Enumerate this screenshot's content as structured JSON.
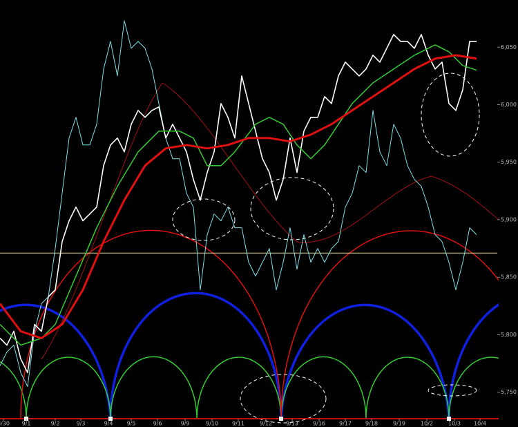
{
  "chart_data": {
    "type": "line",
    "xlim": [
      0,
      72
    ],
    "ylim": [
      5727,
      6091
    ],
    "yticks": [
      {
        "value": 6050,
        "label": "6,050"
      },
      {
        "value": 6000,
        "label": "6,000"
      },
      {
        "value": 5950,
        "label": "5,950"
      },
      {
        "value": 5900,
        "label": "5,900"
      },
      {
        "value": 5850,
        "label": "5,850"
      },
      {
        "value": 5800,
        "label": "5,800"
      },
      {
        "value": 5750,
        "label": "5,750"
      }
    ],
    "xticks": [
      {
        "value": 0.5,
        "label": "8/30"
      },
      {
        "value": 3.8,
        "label": "9/1"
      },
      {
        "value": 8,
        "label": "9/2"
      },
      {
        "value": 11.7,
        "label": "9/3"
      },
      {
        "value": 15.7,
        "label": "9/4"
      },
      {
        "value": 19,
        "label": "9/5"
      },
      {
        "value": 22.8,
        "label": "9/6"
      },
      {
        "value": 26.8,
        "label": "9/9"
      },
      {
        "value": 30.7,
        "label": "9/10"
      },
      {
        "value": 34.5,
        "label": "9/11"
      },
      {
        "value": 38.5,
        "label": "9/12"
      },
      {
        "value": 42.3,
        "label": "9/13"
      },
      {
        "value": 46.2,
        "label": "9/16"
      },
      {
        "value": 50,
        "label": "9/17"
      },
      {
        "value": 53.8,
        "label": "9/18"
      },
      {
        "value": 57.8,
        "label": "9/19"
      },
      {
        "value": 61.8,
        "label": "10/2"
      },
      {
        "value": 65.8,
        "label": "10/3"
      },
      {
        "value": 69.5,
        "label": "10/4"
      }
    ],
    "hline": {
      "value": 5871,
      "color": "#e8e08a"
    },
    "series": [
      {
        "color": "#7fe0e8",
        "width": 1,
        "x": [
          0,
          1,
          2,
          3,
          4,
          5,
          6,
          7,
          8,
          9,
          10,
          11,
          12,
          13,
          14,
          15,
          16,
          17,
          18,
          19,
          20,
          21,
          22,
          23,
          24,
          25,
          26,
          27,
          28,
          29,
          30,
          31,
          32,
          33,
          34,
          35,
          36,
          37,
          38,
          39,
          40,
          41,
          42,
          43,
          44,
          45,
          46,
          47,
          48,
          49,
          50,
          51,
          52,
          53,
          54,
          55,
          56,
          57,
          58,
          59,
          60,
          61,
          62,
          63,
          64,
          65,
          66,
          67,
          68,
          69
        ],
        "values": [
          5773,
          5785,
          5791,
          5767,
          5755,
          5803,
          5827,
          5833,
          5875,
          5923,
          5971,
          5989,
          5965,
          5965,
          5983,
          6031,
          6055,
          6025,
          6073,
          6049,
          6055,
          6049,
          6031,
          6001,
          5971,
          5953,
          5953,
          5923,
          5911,
          5839,
          5887,
          5905,
          5899,
          5911,
          5893,
          5893,
          5863,
          5851,
          5863,
          5875,
          5839,
          5863,
          5893,
          5857,
          5887,
          5863,
          5875,
          5863,
          5875,
          5881,
          5911,
          5923,
          5947,
          5941,
          5995,
          5959,
          5947,
          5983,
          5971,
          5947,
          5935,
          5929,
          5911,
          5887,
          5881,
          5863,
          5839,
          5863,
          5893,
          5887
        ]
      },
      {
        "color": "#ffffff",
        "width": 1.6,
        "x": [
          0,
          1,
          2,
          3,
          4,
          5,
          6,
          7,
          8,
          9,
          10,
          11,
          12,
          13,
          14,
          15,
          16,
          17,
          18,
          19,
          20,
          21,
          22,
          23,
          24,
          25,
          26,
          27,
          28,
          29,
          30,
          31,
          32,
          33,
          34,
          35,
          36,
          37,
          38,
          39,
          40,
          41,
          42,
          43,
          44,
          45,
          46,
          47,
          48,
          49,
          50,
          51,
          52,
          53,
          54,
          55,
          56,
          57,
          58,
          59,
          60,
          61,
          62,
          63,
          64,
          65,
          66,
          67,
          68,
          69
        ],
        "values": [
          5797,
          5791,
          5803,
          5779,
          5767,
          5809,
          5803,
          5833,
          5839,
          5881,
          5899,
          5911,
          5899,
          5905,
          5911,
          5947,
          5965,
          5971,
          5959,
          5983,
          5995,
          5989,
          5995,
          5998,
          5971,
          5983,
          5971,
          5959,
          5935,
          5917,
          5941,
          5959,
          6001,
          5989,
          5971,
          6025,
          6001,
          5977,
          5953,
          5941,
          5917,
          5935,
          5971,
          5941,
          5977,
          5989,
          5989,
          6007,
          6001,
          6025,
          6037,
          6031,
          6025,
          6031,
          6043,
          6037,
          6049,
          6061,
          6055,
          6055,
          6049,
          6061,
          6043,
          6031,
          6037,
          6001,
          5995,
          6013,
          6055,
          6055
        ]
      },
      {
        "color": "#33cc33",
        "width": 1.5,
        "x": [
          0,
          3,
          6,
          8,
          11,
          14,
          17,
          20,
          23,
          26,
          28,
          30,
          32,
          34,
          37,
          39,
          41,
          43,
          45,
          47,
          49,
          51,
          54,
          57,
          60,
          63,
          65,
          67,
          69
        ],
        "values": [
          5809,
          5791,
          5797,
          5809,
          5851,
          5893,
          5929,
          5959,
          5977,
          5977,
          5971,
          5947,
          5947,
          5959,
          5983,
          5989,
          5983,
          5965,
          5953,
          5965,
          5983,
          6001,
          6019,
          6031,
          6043,
          6052,
          6046,
          6034,
          6030
        ]
      },
      {
        "color": "#e01010",
        "width": 3,
        "x": [
          0,
          3,
          6,
          9,
          12,
          15,
          18,
          21,
          24,
          27,
          30,
          33,
          36,
          39,
          42,
          45,
          48,
          51,
          54,
          57,
          60,
          63,
          66,
          69
        ],
        "values": [
          5827,
          5803,
          5797,
          5809,
          5839,
          5881,
          5917,
          5947,
          5962,
          5965,
          5962,
          5965,
          5971,
          5971,
          5968,
          5974,
          5983,
          5995,
          6007,
          6019,
          6031,
          6040,
          6043,
          6040
        ]
      }
    ]
  }
}
